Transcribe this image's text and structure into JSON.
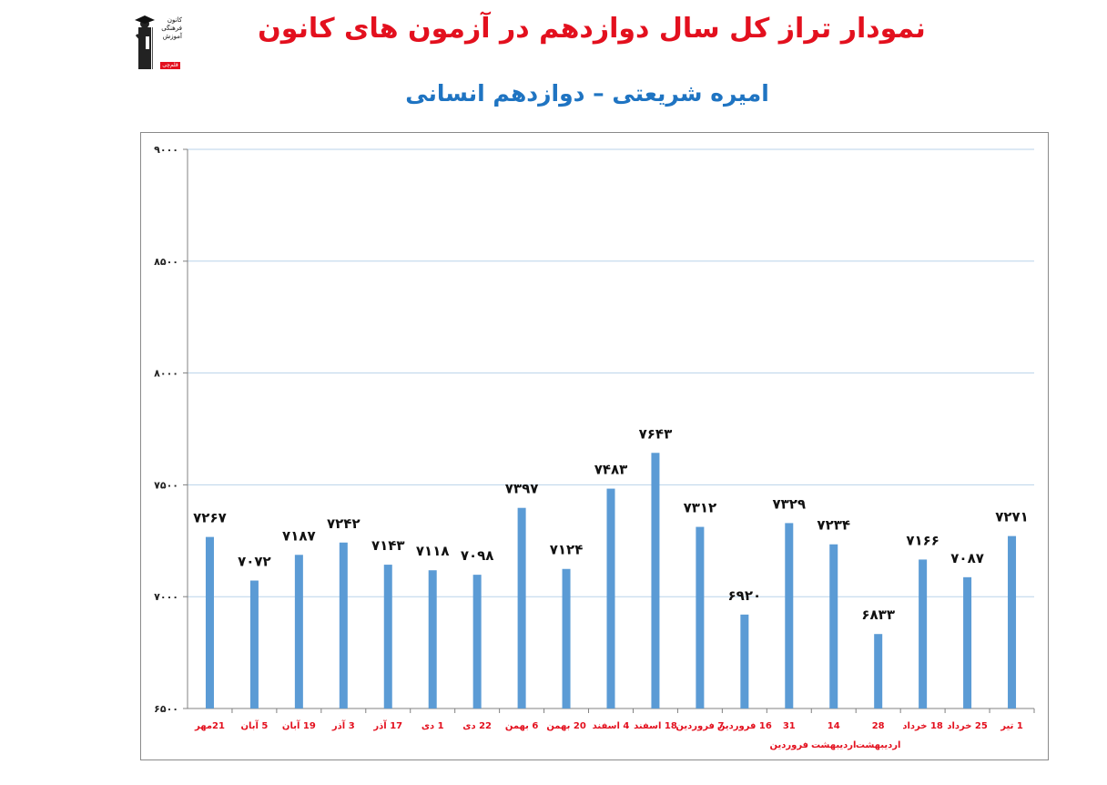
{
  "header": {
    "title": "نمودار تراز کل سال دوازدهم در آزمون های کانون",
    "subtitle": "امیره شریعتی – دوازدهم انسانی",
    "logo_lines": [
      "کانون",
      "فرهنگی",
      "آموزش"
    ],
    "logo_badge": "قلم‌چی"
  },
  "colors": {
    "title": "#e3101e",
    "subtitle": "#1f74c2",
    "bar": "#5b9bd5",
    "category_label": "#e3101e",
    "data_label": "#111111",
    "grid": "#b9d3ea"
  },
  "chart_data": {
    "type": "bar",
    "title": "نمودار تراز کل سال دوازدهم در آزمون های کانون",
    "subtitle": "امیره شریعتی – دوازدهم انسانی",
    "ylim": [
      6500,
      9000
    ],
    "yticks": [
      6500,
      7000,
      7500,
      8000,
      8500,
      9000
    ],
    "ytick_labels": [
      "۶۵۰۰",
      "۷۰۰۰",
      "۷۵۰۰",
      "۸۰۰۰",
      "۸۵۰۰",
      "۹۰۰۰"
    ],
    "grid": true,
    "categories": [
      "21مهر",
      "5 آبان",
      "19 آبان",
      "3 آذر",
      "17 آذر",
      "1 دی",
      "22 دی",
      "6 بهمن",
      "20 بهمن",
      "4 اسفند",
      "18 اسفند",
      "7 فروردین",
      "16 فروردین",
      "31 فروردین",
      "14 اردیبهشت",
      "28 اردیبهشت",
      "18 خرداد",
      "25 خرداد",
      "1 تیر"
    ],
    "category_lines": [
      [
        "21مهر"
      ],
      [
        "5 آبان"
      ],
      [
        "19 آبان"
      ],
      [
        "3 آذر"
      ],
      [
        "17 آذر"
      ],
      [
        "1 دی"
      ],
      [
        "22 دی"
      ],
      [
        "6 بهمن"
      ],
      [
        "20 بهمن"
      ],
      [
        "4 اسفند"
      ],
      [
        "18 اسفند"
      ],
      [
        "7 فروردین"
      ],
      [
        "16 فروردین"
      ],
      [
        "31",
        "فروردین"
      ],
      [
        "14",
        "اردیبهشت"
      ],
      [
        "28",
        "اردیبهشت"
      ],
      [
        "18 خرداد"
      ],
      [
        "25 خرداد"
      ],
      [
        "1 تیر"
      ]
    ],
    "values": [
      7267,
      7072,
      7187,
      7242,
      7143,
      7118,
      7098,
      7397,
      7124,
      7483,
      7643,
      7312,
      6920,
      7329,
      7234,
      6833,
      7166,
      7087,
      7271
    ],
    "value_labels": [
      "۷۲۶۷",
      "۷۰۷۲",
      "۷۱۸۷",
      "۷۲۴۲",
      "۷۱۴۳",
      "۷۱۱۸",
      "۷۰۹۸",
      "۷۳۹۷",
      "۷۱۲۴",
      "۷۴۸۳",
      "۷۶۴۳",
      "۷۳۱۲",
      "۶۹۲۰",
      "۷۳۲۹",
      "۷۲۳۴",
      "۶۸۳۳",
      "۷۱۶۶",
      "۷۰۸۷",
      "۷۲۷۱"
    ]
  }
}
